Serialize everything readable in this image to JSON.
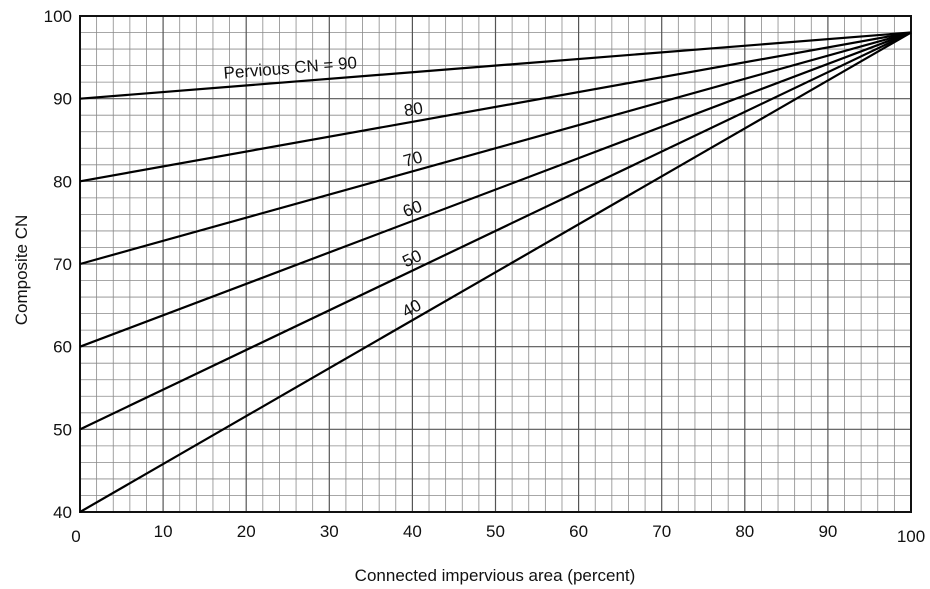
{
  "chart_data": {
    "type": "line",
    "xlabel": "Connected impervious area (percent)",
    "ylabel": "Composite CN",
    "xlim": [
      0,
      100
    ],
    "ylim": [
      40,
      100
    ],
    "x_ticks": [
      "0",
      "10",
      "20",
      "30",
      "40",
      "50",
      "60",
      "70",
      "80",
      "90",
      "100"
    ],
    "y_ticks": [
      "40",
      "50",
      "60",
      "70",
      "80",
      "90",
      "100"
    ],
    "grid": true,
    "series_label_prefix": "Pervious CN =",
    "series": [
      {
        "label": "90",
        "x": [
          0,
          100
        ],
        "y": [
          90,
          98
        ]
      },
      {
        "label": "80",
        "x": [
          0,
          100
        ],
        "y": [
          80,
          98
        ]
      },
      {
        "label": "70",
        "x": [
          0,
          100
        ],
        "y": [
          70,
          98
        ]
      },
      {
        "label": "60",
        "x": [
          0,
          100
        ],
        "y": [
          60,
          98
        ]
      },
      {
        "label": "50",
        "x": [
          0,
          100
        ],
        "y": [
          50,
          98
        ]
      },
      {
        "label": "40",
        "x": [
          0,
          100
        ],
        "y": [
          40,
          98
        ]
      }
    ]
  }
}
